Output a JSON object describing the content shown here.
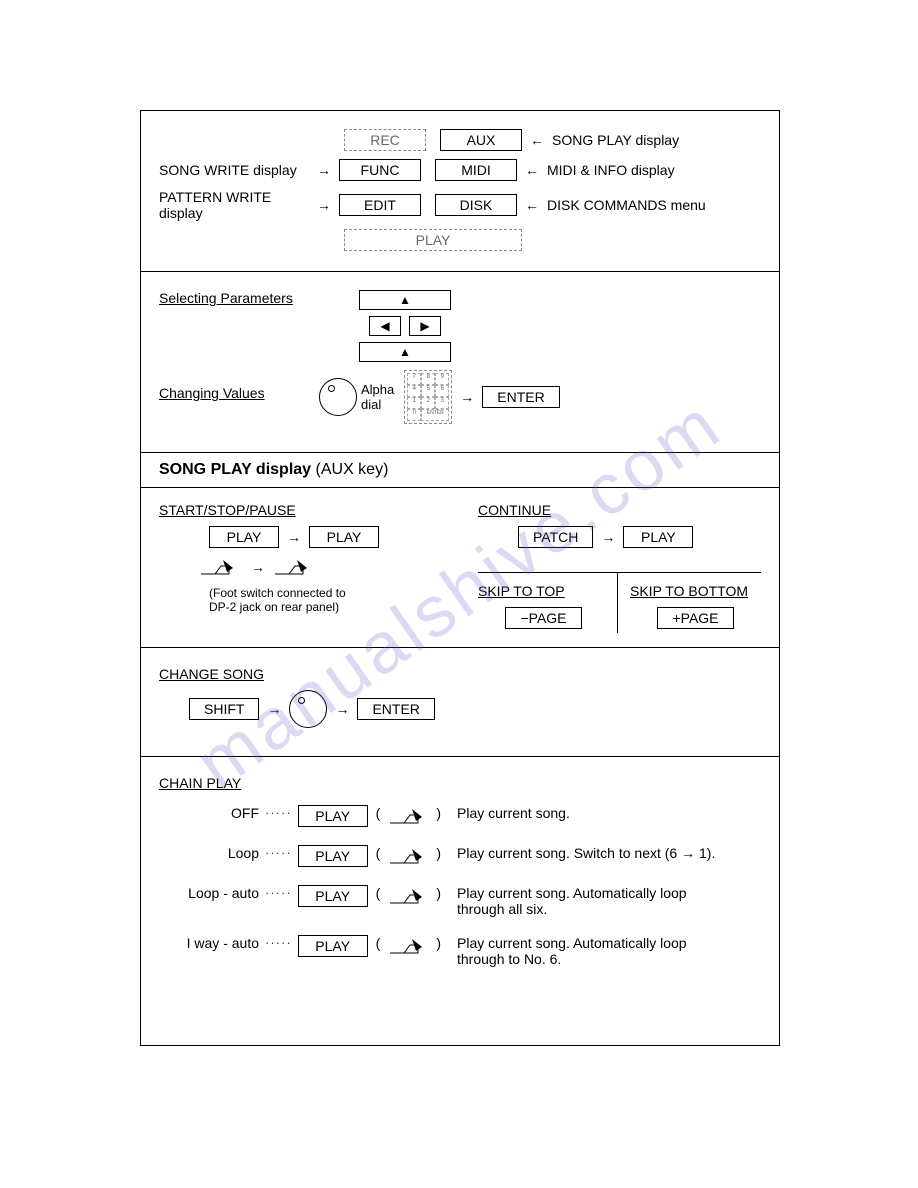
{
  "watermark": "manualshive.com",
  "s1": {
    "left_labels": [
      "SONG WRITE display",
      "PATTERN WRITE display"
    ],
    "buttons": {
      "rec": "REC",
      "aux": "AUX",
      "func": "FUNC",
      "midi": "MIDI",
      "edit": "EDIT",
      "disk": "DISK",
      "play": "PLAY"
    },
    "right_labels": [
      "SONG PLAY display",
      "MIDI & INFO display",
      "DISK COMMANDS menu"
    ]
  },
  "s2": {
    "sel_params": "Selecting Parameters",
    "chg_values": "Changing Values",
    "alpha": "Alpha",
    "dial": "dial",
    "enter": "ENTER",
    "arrows": {
      "up": "▲",
      "left": "◀",
      "right": "▶",
      "down": "▲"
    }
  },
  "s3": {
    "title_bold": "SONG PLAY display",
    "title_rest": " (AUX key)",
    "start_stop": "START/STOP/PAUSE",
    "play": "PLAY",
    "footnote1": "(Foot switch connected to",
    "footnote2": "DP-2 jack on rear panel)",
    "continue": "CONTINUE",
    "patch": "PATCH",
    "skip_top": "SKIP TO TOP",
    "skip_bot": "SKIP TO BOTTOM",
    "mpage": "−PAGE",
    "ppage": "+PAGE"
  },
  "s4": {
    "change_song": "CHANGE SONG",
    "shift": "SHIFT",
    "enter": "ENTER"
  },
  "s5": {
    "chain_play": "CHAIN PLAY",
    "play": "PLAY",
    "rows": [
      {
        "label": "OFF",
        "desc": "Play current song."
      },
      {
        "label": "Loop",
        "desc": "Play current song. Switch to next (6 → 1)."
      },
      {
        "label": "Loop - auto",
        "desc": "Play current song. Automatically loop through all six."
      },
      {
        "label": "I way - auto",
        "desc": "Play current song. Automatically loop through to No. 6."
      }
    ]
  }
}
